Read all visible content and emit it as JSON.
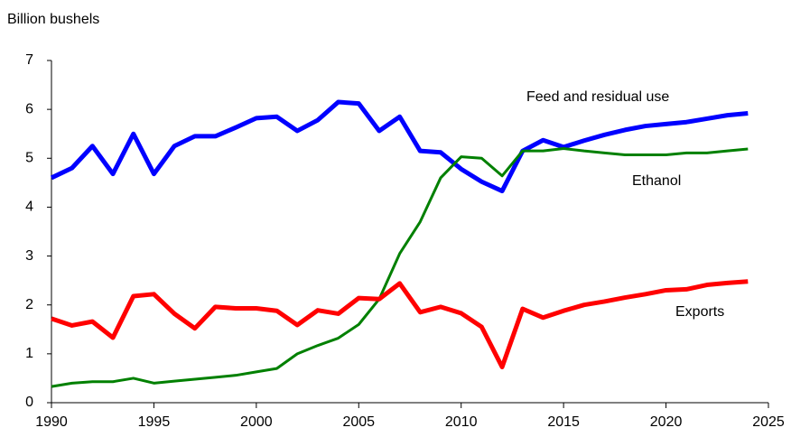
{
  "chart_data": {
    "type": "line",
    "y_axis_label": "Billion bushels",
    "x": [
      1990,
      1991,
      1992,
      1993,
      1994,
      1995,
      1996,
      1997,
      1998,
      1999,
      2000,
      2001,
      2002,
      2003,
      2004,
      2005,
      2006,
      2007,
      2008,
      2009,
      2010,
      2011,
      2012,
      2013,
      2014,
      2015,
      2016,
      2017,
      2018,
      2019,
      2020,
      2021,
      2022,
      2023,
      2024
    ],
    "series": [
      {
        "name": "Feed and residual use",
        "color": "#0000ff",
        "values": [
          4.6,
          4.8,
          5.25,
          4.68,
          5.5,
          4.68,
          5.25,
          5.45,
          5.45,
          5.63,
          5.82,
          5.85,
          5.56,
          5.78,
          6.15,
          6.12,
          5.56,
          5.85,
          5.15,
          5.12,
          4.78,
          4.52,
          4.33,
          5.15,
          5.37,
          5.23,
          5.36,
          5.48,
          5.58,
          5.66,
          5.7,
          5.74,
          5.81,
          5.88,
          5.92
        ]
      },
      {
        "name": "Ethanol",
        "color": "#008000",
        "values": [
          0.33,
          0.4,
          0.43,
          0.43,
          0.5,
          0.4,
          0.44,
          0.48,
          0.52,
          0.56,
          0.63,
          0.7,
          1.0,
          1.17,
          1.32,
          1.6,
          2.12,
          3.05,
          3.7,
          4.6,
          5.03,
          5.0,
          4.64,
          5.15,
          5.15,
          5.2,
          5.15,
          5.11,
          5.07,
          5.07,
          5.07,
          5.11,
          5.11,
          5.15,
          5.19
        ]
      },
      {
        "name": "Exports",
        "color": "#ff0000",
        "values": [
          1.72,
          1.58,
          1.66,
          1.33,
          2.18,
          2.22,
          1.82,
          1.52,
          1.96,
          1.93,
          1.93,
          1.88,
          1.59,
          1.89,
          1.82,
          2.14,
          2.12,
          2.44,
          1.85,
          1.96,
          1.83,
          1.55,
          0.73,
          1.92,
          1.74,
          1.88,
          2.0,
          2.07,
          2.15,
          2.22,
          2.3,
          2.32,
          2.41,
          2.45,
          2.48
        ]
      }
    ],
    "xlim": [
      1990,
      2025
    ],
    "xticks": [
      1990,
      1995,
      2000,
      2005,
      2010,
      2015,
      2020,
      2025
    ],
    "ylim": [
      0,
      7
    ],
    "yticks": [
      0,
      1,
      2,
      3,
      4,
      5,
      6,
      7
    ],
    "grid": false
  }
}
